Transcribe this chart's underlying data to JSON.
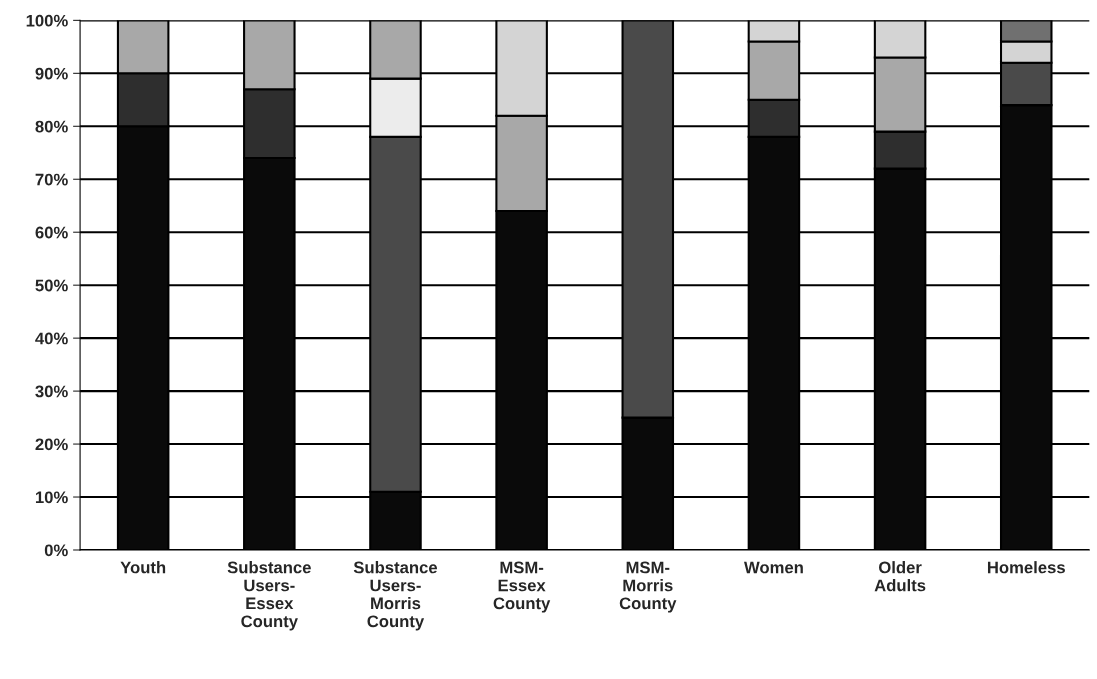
{
  "chart_data": {
    "type": "bar",
    "stacked": true,
    "categories": [
      "Youth",
      "Substance\nUsers-\nEssex\nCounty",
      "Substance\nUsers-\nMorris\nCounty",
      "MSM-\nEssex\nCounty",
      "MSM-\nMorris\nCounty",
      "Women",
      "Older\nAdults",
      "Homeless"
    ],
    "series": [
      {
        "color": "#0a0a0a",
        "values": [
          80,
          74,
          11,
          64,
          25,
          78,
          72,
          84
        ]
      },
      {
        "color": "#4a4a4a",
        "values": [
          0,
          0,
          67,
          0,
          75,
          0,
          0,
          8
        ]
      },
      {
        "color": "#2e2e2e",
        "values": [
          10,
          13,
          0,
          0,
          0,
          7,
          7,
          0
        ]
      },
      {
        "color": "#ececec",
        "values": [
          0,
          0,
          11,
          0,
          0,
          0,
          0,
          0
        ]
      },
      {
        "color": "#a8a8a8",
        "values": [
          10,
          13,
          11,
          18,
          0,
          11,
          14,
          0
        ]
      },
      {
        "color": "#d4d4d4",
        "values": [
          0,
          0,
          0,
          18,
          0,
          4,
          7,
          4
        ]
      },
      {
        "color": "#707070",
        "values": [
          0,
          0,
          0,
          0,
          0,
          0,
          0,
          4
        ]
      }
    ],
    "ylim": [
      0,
      100
    ],
    "yticks": [
      {
        "value": 0,
        "label": "0%"
      },
      {
        "value": 10,
        "label": "10%"
      },
      {
        "value": 20,
        "label": "20%"
      },
      {
        "value": 30,
        "label": "30%"
      },
      {
        "value": 40,
        "label": "40%"
      },
      {
        "value": 50,
        "label": "50%"
      },
      {
        "value": 60,
        "label": "60%"
      },
      {
        "value": 70,
        "label": "70%"
      },
      {
        "value": 80,
        "label": "80%"
      },
      {
        "value": 90,
        "label": "90%"
      },
      {
        "value": 100,
        "label": "100%"
      }
    ],
    "grid": "y",
    "legend": false
  }
}
